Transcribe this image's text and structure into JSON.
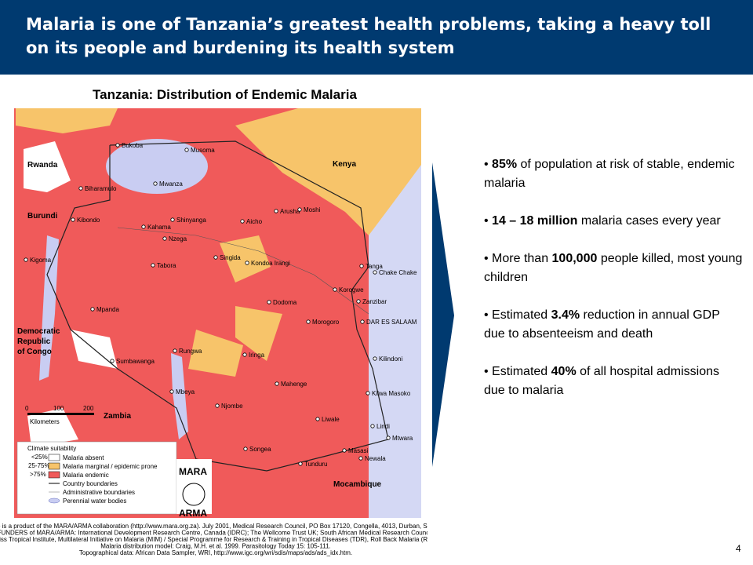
{
  "header": {
    "title": "Malaria is one of Tanzania’s greatest health problems, taking a heavy toll on its people and burdening its health system"
  },
  "map": {
    "title": "Tanzania: Distribution of Endemic Malaria",
    "places": [
      "Bukoba",
      "Musoma",
      "Rwanda",
      "Kenya",
      "Biharamulo",
      "Mwanza",
      "Burundi",
      "Kibondo",
      "Shinyanga",
      "Kahama",
      "Arusha",
      "Moshi",
      "Aicho",
      "Nzega",
      "Kigoma",
      "Tabora",
      "Singida",
      "Kondoa Irangi",
      "Korogwe",
      "Tanga",
      "Chake Chake",
      "Dodoma",
      "Zanzibar",
      "DAR ES SALAAM",
      "Mpanda",
      "Morogoro",
      "Democratic",
      "Republic",
      "of Congo",
      "Rungwa",
      "Iringa",
      "Kilindoni",
      "Sumbawanga",
      "Mahenge",
      "Kilwa Masoko",
      "Mbeya",
      "Njombe",
      "Zambia",
      "Liwale",
      "Lindi",
      "Mtwara",
      "Songea",
      "Masasi",
      "Newala",
      "Tunduru",
      "Mocambique"
    ],
    "scale": {
      "ticks": [
        "0",
        "100",
        "200"
      ],
      "unit": "Kilometers"
    },
    "legend": {
      "title": "Climate suitability",
      "items": [
        {
          "range": "<25%",
          "label": "Malaria absent"
        },
        {
          "range": "25-75%",
          "label": "Malaria marginal / epidemic prone"
        },
        {
          "range": ">75%",
          "label": "Malaria endemic"
        },
        {
          "label": "Country boundaries"
        },
        {
          "label": "Administrative boundaries"
        },
        {
          "label": "Perennial water bodies"
        }
      ]
    },
    "logo": [
      "MARA",
      "ARMA"
    ],
    "source": [
      "This map is a product of the MARA/ARMA collaboration (http://www.mara.org.za). July 2001, Medical Research Council, PO Box 17120, Congella, 4013, Durban, South Africa",
      "CORE FUNDERS of MARA/ARMA: International Development Research Centre, Canada (IDRC); The Wellcome Trust UK; South African Medical Research Council (MRC);",
      "Swiss Tropical Institute, Multilateral Initiative on Malaria (MIM) / Special Programme for Research & Training in Tropical Diseases (TDR), Roll Back Malaria (RBM).",
      "Malaria distribution model: Craig, M.H. et al. 1999. Parasitology Today 15: 105-111.",
      "Topographical data: African Data Sampler, WRI, http://www.igc.org/wri/sdis/maps/ads/ads_idx.htm."
    ]
  },
  "bullets": [
    {
      "pre": "",
      "bold": "85%",
      "post": " of population at risk of stable, endemic malaria"
    },
    {
      "pre": "",
      "bold": "14 – 18 million",
      "post": " malaria cases every year"
    },
    {
      "pre": "More than ",
      "bold": "100,000",
      "post": " people killed, most young children"
    },
    {
      "pre": "Estimated ",
      "bold": "3.4%",
      "post": " reduction in annual GDP due to absenteeism and death"
    },
    {
      "pre": "Estimated ",
      "bold": "40%",
      "post": " of all hospital admissions due to malaria"
    }
  ],
  "page_number": "4"
}
